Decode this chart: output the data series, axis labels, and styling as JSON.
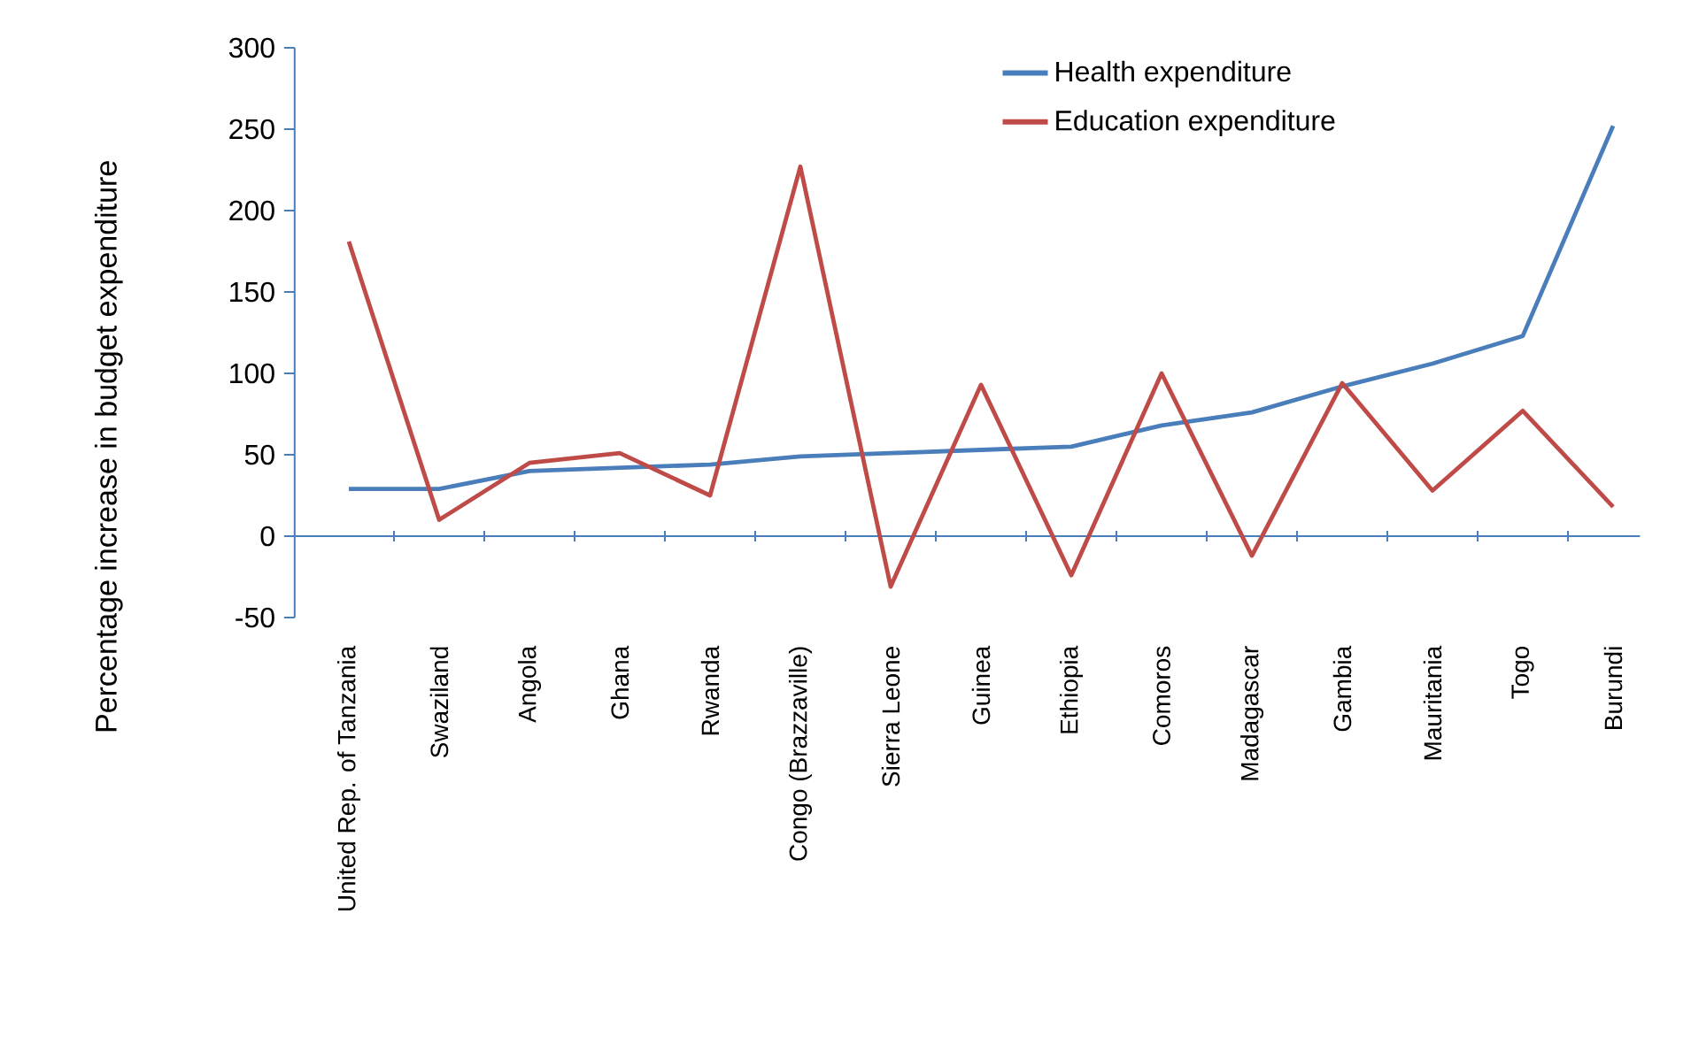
{
  "chart_data": {
    "type": "line",
    "ylabel": "Percentage increase in budget expenditure",
    "categories": [
      "United Rep. of Tanzania",
      "Swaziland",
      "Angola",
      "Ghana",
      "Rwanda",
      "Congo (Brazzaville)",
      "Sierra Leone",
      "Guinea",
      "Ethiopia",
      "Comoros",
      "Madagascar",
      "Gambia",
      "Mauritania",
      "Togo",
      "Burundi"
    ],
    "series": [
      {
        "name": "Health expenditure",
        "color": "#4a7ebb",
        "values": [
          29,
          29,
          40,
          42,
          44,
          49,
          51,
          53,
          55,
          68,
          76,
          92,
          106,
          123,
          252
        ]
      },
      {
        "name": "Education expenditure",
        "color": "#be4b48",
        "values": [
          181,
          10,
          45,
          51,
          25,
          227,
          -31,
          93,
          -24,
          100,
          -12,
          94,
          28,
          77,
          18
        ]
      }
    ],
    "ylim": [
      -50,
      300
    ],
    "yticks": [
      -50,
      0,
      50,
      100,
      150,
      200,
      250,
      300
    ],
    "ref_lines": [
      {
        "axis": "y",
        "value": 0,
        "color": "#4a7ebb"
      }
    ],
    "grid": false,
    "legend": "top right",
    "marker": "none",
    "line_style": "solid"
  }
}
